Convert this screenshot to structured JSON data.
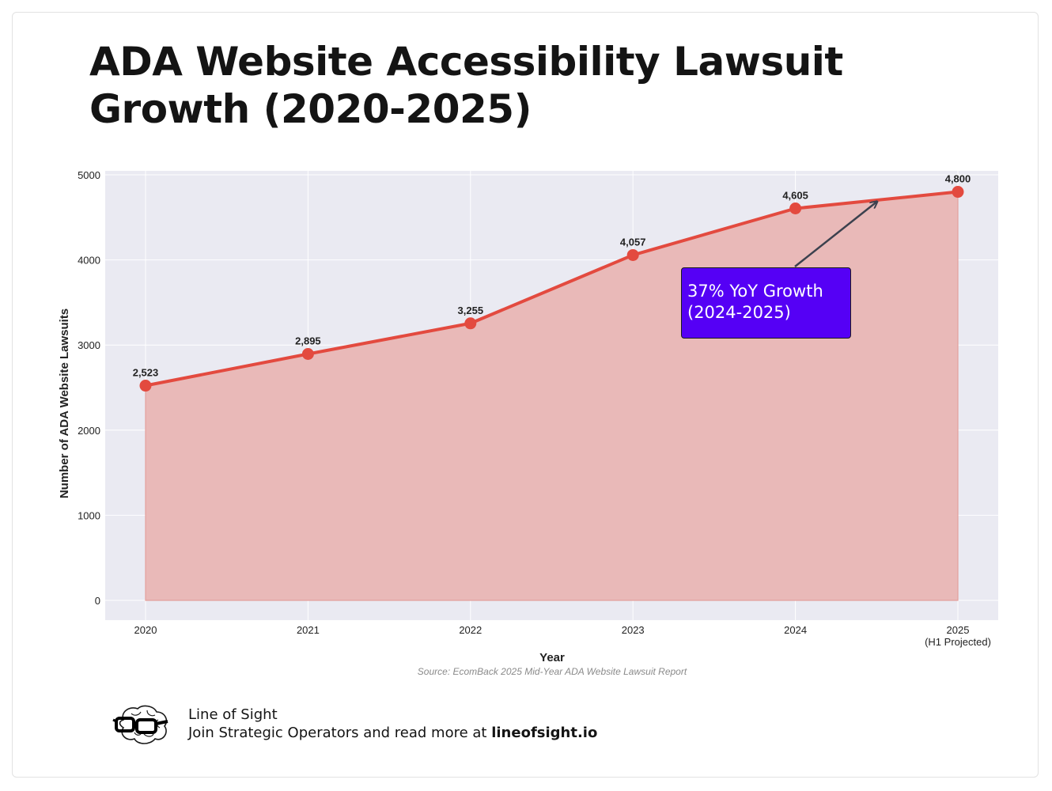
{
  "title": "ADA Website Accessibility Lawsuit Growth (2020-2025)",
  "chart_data": {
    "type": "area",
    "categories": [
      "2020",
      "2021",
      "2022",
      "2023",
      "2024",
      "2025"
    ],
    "category_sublabels": [
      "",
      "",
      "",
      "",
      "",
      "(H1 Projected)"
    ],
    "values": [
      2523,
      2895,
      3255,
      4057,
      4605,
      4800
    ],
    "data_labels": [
      "2,523",
      "2,895",
      "3,255",
      "4,057",
      "4,605",
      "4,800"
    ],
    "ylim": [
      0,
      5000
    ],
    "yticks": [
      0,
      1000,
      2000,
      3000,
      4000,
      5000
    ],
    "xlabel": "Year",
    "ylabel": "Number of ADA Website Lawsuits",
    "source": "Source: EcomBack 2025 Mid-Year ADA Website Lawsuit Report",
    "annotation": {
      "text_line1": "37% YoY Growth",
      "text_line2": "(2024-2025)",
      "arrow_target_x": 4.5,
      "arrow_target_y": 4700
    },
    "colors": {
      "line": "#e34a3f",
      "fill": "#e9b9b8",
      "marker": "#e34a3f",
      "plot_bg": "#eaeaf2",
      "callout_bg": "#5500f5",
      "arrow": "#3c414e"
    }
  },
  "footer": {
    "brand": "Line of Sight",
    "tagline_prefix": "Join Strategic Operators and read more at ",
    "link_text": "lineofsight.io"
  }
}
